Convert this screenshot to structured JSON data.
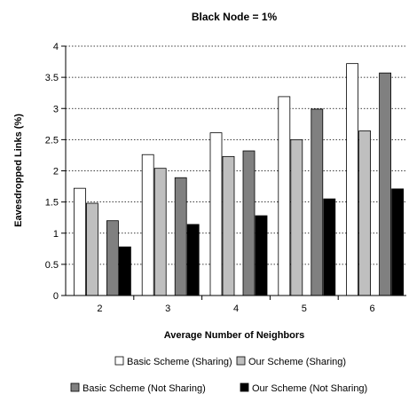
{
  "chart_data": {
    "type": "bar",
    "title": "Black Node = 1%",
    "xlabel": "Average Number of Neighbors",
    "ylabel": "Eavesdropped Links (%)",
    "categories": [
      "2",
      "3",
      "4",
      "5",
      "6"
    ],
    "ylim": [
      0,
      4
    ],
    "yticks": [
      "0",
      "0.5",
      "1",
      "1.5",
      "2",
      "2.5",
      "3",
      "3.5",
      "4"
    ],
    "grid": "horizontal dotted",
    "legend_position": "bottom",
    "series": [
      {
        "name": "Basic Scheme (Sharing)",
        "color": "#ffffff",
        "values": [
          1.72,
          2.26,
          2.61,
          3.19,
          3.72
        ]
      },
      {
        "name": "Our Scheme (Sharing)",
        "color": "#bfbfbf",
        "values": [
          1.48,
          2.04,
          2.23,
          2.5,
          2.64
        ]
      },
      {
        "name": "Basic Scheme (Not Sharing)",
        "color": "#808080",
        "values": [
          1.2,
          1.89,
          2.32,
          2.99,
          3.57
        ]
      },
      {
        "name": "Our Scheme (Not Sharing)",
        "color": "#000000",
        "values": [
          0.78,
          1.14,
          1.28,
          1.55,
          1.71
        ]
      }
    ]
  }
}
